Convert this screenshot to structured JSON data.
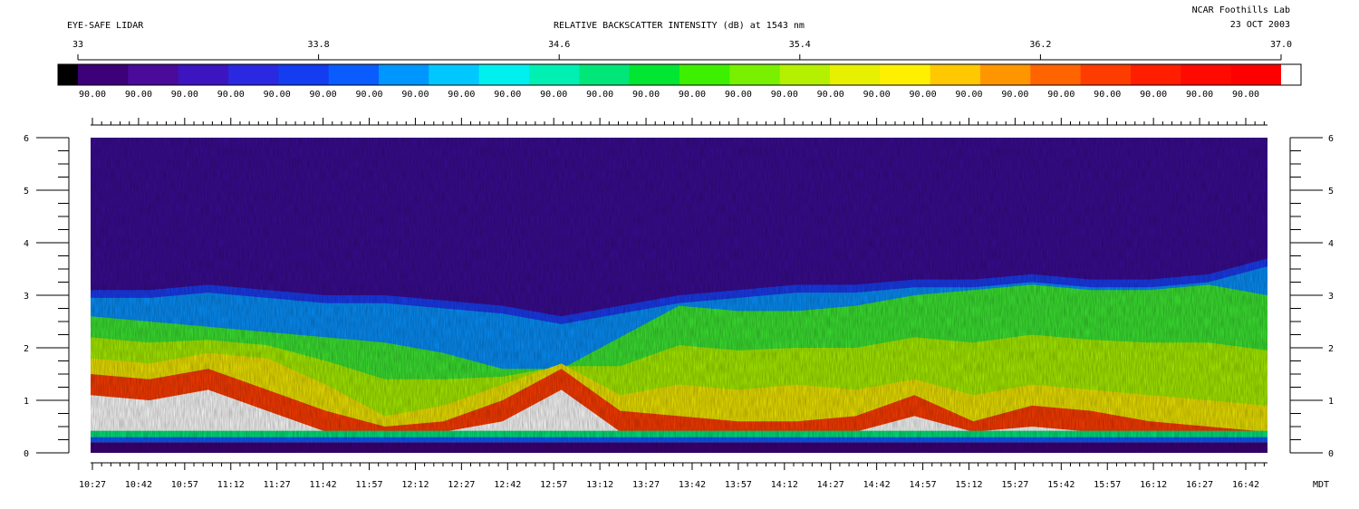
{
  "header": {
    "instrument": "EYE-SAFE LIDAR",
    "title": "RELATIVE BACKSCATTER INTENSITY (dB) at 1543 nm",
    "site": "NCAR Foothills Lab",
    "date": "23 OCT 2003"
  },
  "chart_data": {
    "type": "heatmap",
    "title": "RELATIVE BACKSCATTER INTENSITY (dB) at 1543 nm",
    "colorbar": {
      "range": [
        33,
        37.0
      ],
      "tick_labels": [
        "33",
        "33.8",
        "34.6",
        "35.4",
        "36.2",
        "37.0"
      ],
      "segment_labels": [
        "90.00",
        "90.00",
        "90.00",
        "90.00",
        "90.00",
        "90.00",
        "90.00",
        "90.00",
        "90.00",
        "90.00",
        "90.00",
        "90.00",
        "90.00",
        "90.00",
        "90.00",
        "90.00",
        "90.00",
        "90.00",
        "90.00",
        "90.00",
        "90.00",
        "90.00",
        "90.00",
        "90.00",
        "90.00",
        "90.00"
      ],
      "colors": [
        "#000000",
        "#3c0078",
        "#4a0a9a",
        "#3c14c0",
        "#2a28e0",
        "#143cf0",
        "#0a5cff",
        "#0096ff",
        "#00c8ff",
        "#00f0f0",
        "#00f0b4",
        "#00e678",
        "#00e632",
        "#3cf000",
        "#78f000",
        "#b4f000",
        "#e6f000",
        "#fff000",
        "#ffc800",
        "#ff9600",
        "#ff6400",
        "#ff3c00",
        "#ff1e00",
        "#ff0a00",
        "#ff0000",
        "#ffffff"
      ]
    },
    "x_axis": {
      "label": "MDT",
      "tick_labels": [
        "10:27",
        "10:42",
        "10:57",
        "11:12",
        "11:27",
        "11:42",
        "11:57",
        "12:12",
        "12:27",
        "12:42",
        "12:57",
        "13:12",
        "13:27",
        "13:42",
        "13:57",
        "14:12",
        "14:27",
        "14:42",
        "14:57",
        "15:12",
        "15:27",
        "15:42",
        "15:57",
        "16:12",
        "16:27",
        "16:42"
      ],
      "range": [
        "10:27",
        "16:50"
      ]
    },
    "y_axis": {
      "tick_labels": [
        "0",
        "1",
        "2",
        "3",
        "4",
        "5",
        "6"
      ],
      "range": [
        0,
        6
      ]
    },
    "layers": {
      "time_fraction": [
        0.0,
        0.05,
        0.1,
        0.15,
        0.2,
        0.25,
        0.3,
        0.35,
        0.4,
        0.45,
        0.5,
        0.55,
        0.6,
        0.65,
        0.7,
        0.75,
        0.8,
        0.85,
        0.9,
        0.95,
        1.0
      ],
      "blue_top_km": [
        3.1,
        3.1,
        3.2,
        3.1,
        3.0,
        3.0,
        2.9,
        2.8,
        2.6,
        2.8,
        3.0,
        3.1,
        3.2,
        3.2,
        3.3,
        3.3,
        3.4,
        3.3,
        3.3,
        3.4,
        3.7
      ],
      "green_top_km": [
        2.6,
        2.5,
        2.4,
        2.3,
        2.2,
        2.1,
        1.9,
        1.6,
        1.6,
        2.2,
        2.8,
        2.7,
        2.7,
        2.8,
        3.0,
        3.1,
        3.2,
        3.1,
        3.1,
        3.2,
        3.0
      ],
      "yellow_top_km": [
        1.8,
        1.7,
        1.9,
        1.8,
        1.3,
        0.7,
        0.9,
        1.3,
        1.7,
        1.1,
        1.3,
        1.2,
        1.3,
        1.2,
        1.4,
        1.1,
        1.3,
        1.2,
        1.1,
        1.0,
        0.9
      ],
      "red_top_km": [
        1.5,
        1.4,
        1.6,
        1.2,
        0.8,
        0.5,
        0.6,
        1.0,
        1.6,
        0.8,
        0.7,
        0.6,
        0.6,
        0.7,
        1.1,
        0.6,
        0.9,
        0.8,
        0.6,
        0.5,
        0.4
      ]
    }
  }
}
